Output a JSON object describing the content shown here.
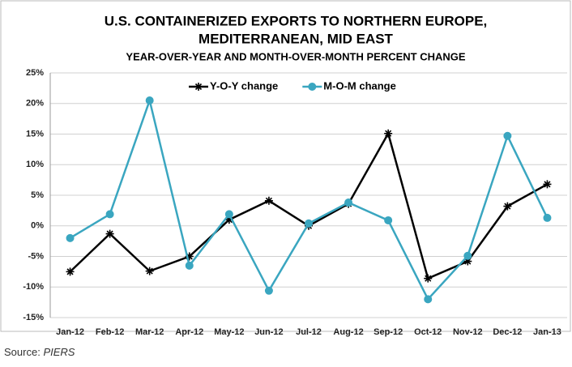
{
  "chart_data": {
    "type": "line",
    "title": [
      "U.S. CONTAINERIZED EXPORTS TO NORTHERN EUROPE,",
      "MEDITERRANEAN, MID EAST"
    ],
    "subtitle": "YEAR-OVER-YEAR AND MONTH-OVER-MONTH PERCENT CHANGE",
    "categories": [
      "Jan-12",
      "Feb-12",
      "Mar-12",
      "Apr-12",
      "May-12",
      "Jun-12",
      "Jul-12",
      "Aug-12",
      "Sep-12",
      "Oct-12",
      "Nov-12",
      "Dec-12",
      "Jan-13"
    ],
    "series": [
      {
        "name": "Y-O-Y change",
        "color": "#000000",
        "marker": "asterisk",
        "values": [
          -7.5,
          -1.3,
          -7.4,
          -5.0,
          1.0,
          4.1,
          0.0,
          3.6,
          15.1,
          -8.6,
          -5.8,
          3.2,
          6.8
        ]
      },
      {
        "name": "M-O-M change",
        "color": "#3aa6c0",
        "marker": "circle",
        "values": [
          -2.0,
          1.9,
          20.5,
          -6.5,
          1.9,
          -10.6,
          0.4,
          3.8,
          0.9,
          -12.0,
          -4.9,
          14.7,
          1.3
        ]
      }
    ],
    "ylim": [
      -15,
      25
    ],
    "yticks": [
      {
        "value": -15,
        "label": "-15%"
      },
      {
        "value": -10,
        "label": "-10%"
      },
      {
        "value": -5,
        "label": "-5%"
      },
      {
        "value": 0,
        "label": "0%"
      },
      {
        "value": 5,
        "label": "5%"
      },
      {
        "value": 10,
        "label": "10%"
      },
      {
        "value": 15,
        "label": "15%"
      },
      {
        "value": 20,
        "label": "20%"
      },
      {
        "value": 25,
        "label": "25%"
      }
    ],
    "grid": true,
    "legend": "top",
    "source_prefix": "Source:",
    "source": "PIERS"
  }
}
